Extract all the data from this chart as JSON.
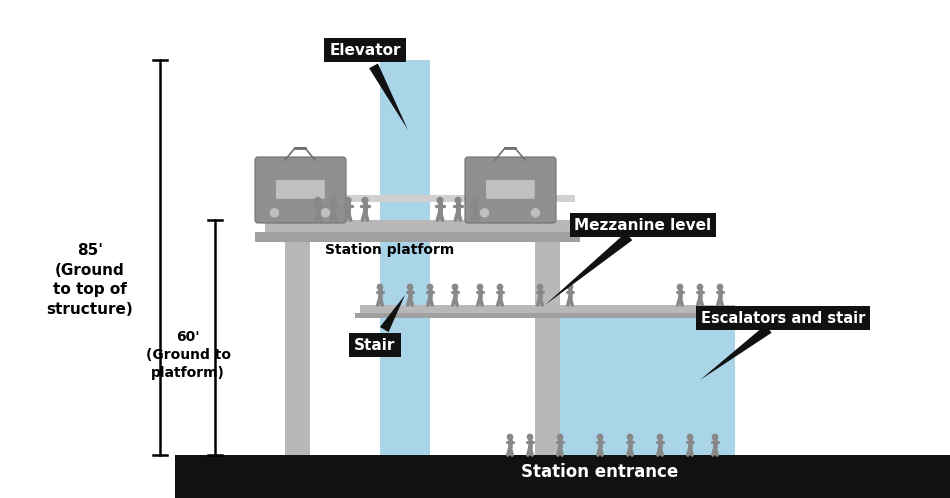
{
  "bg_color": "#ffffff",
  "ground_color": "#111111",
  "structure_gray": "#b8b8b8",
  "structure_dark": "#a0a0a0",
  "light_blue": "#aad4e8",
  "label_bg": "#111111",
  "label_fg": "#ffffff",
  "person_color": "#888888",
  "labels": {
    "elevator": "Elevator",
    "platform": "Station platform",
    "mezzanine": "Mezzanine level",
    "stair": "Stair",
    "escalator": "Escalators and stair",
    "entrance": "Station entrance"
  },
  "dim_85_text": "85'\n(Ground\nto top of\nstructure)",
  "dim_60_text": "60'\n(Ground to\nplatform)",
  "figsize": [
    9.5,
    4.98
  ],
  "dpi": 100
}
